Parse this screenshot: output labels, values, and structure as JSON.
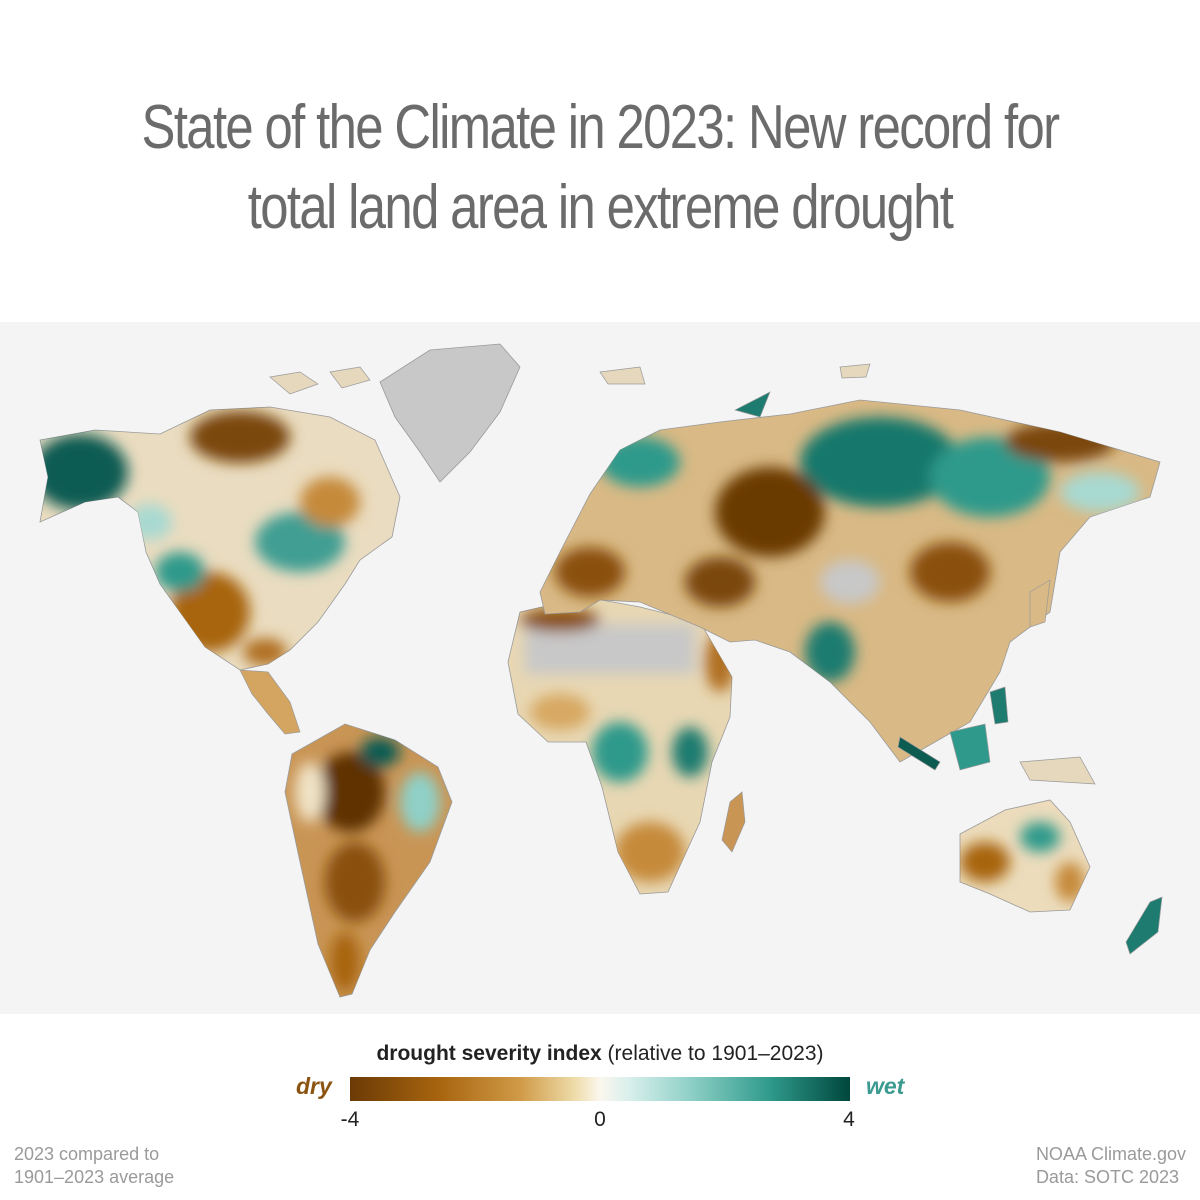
{
  "title": {
    "line1": "State of the Climate in 2023: New record for",
    "line2": "total land area in extreme drought"
  },
  "legend": {
    "title_bold": "drought severity index",
    "title_rest": "(relative to 1901–2023)",
    "dry_label": "dry",
    "wet_label": "wet",
    "tick_min": "-4",
    "tick_mid": "0",
    "tick_max": "4",
    "colors": {
      "very_dry": "#6b3a05",
      "dry": "#a8650f",
      "neutral": "#fbf7ee",
      "wet": "#2f9a8b",
      "very_wet": "#00473d",
      "no_data": "#c8c8c8",
      "ocean": "#f4f4f4"
    }
  },
  "footnote_left": {
    "line1": "2023 compared to",
    "line2": "1901–2023 average"
  },
  "footnote_right": {
    "line1": "NOAA Climate.gov",
    "line2": "Data: SOTC 2023"
  }
}
